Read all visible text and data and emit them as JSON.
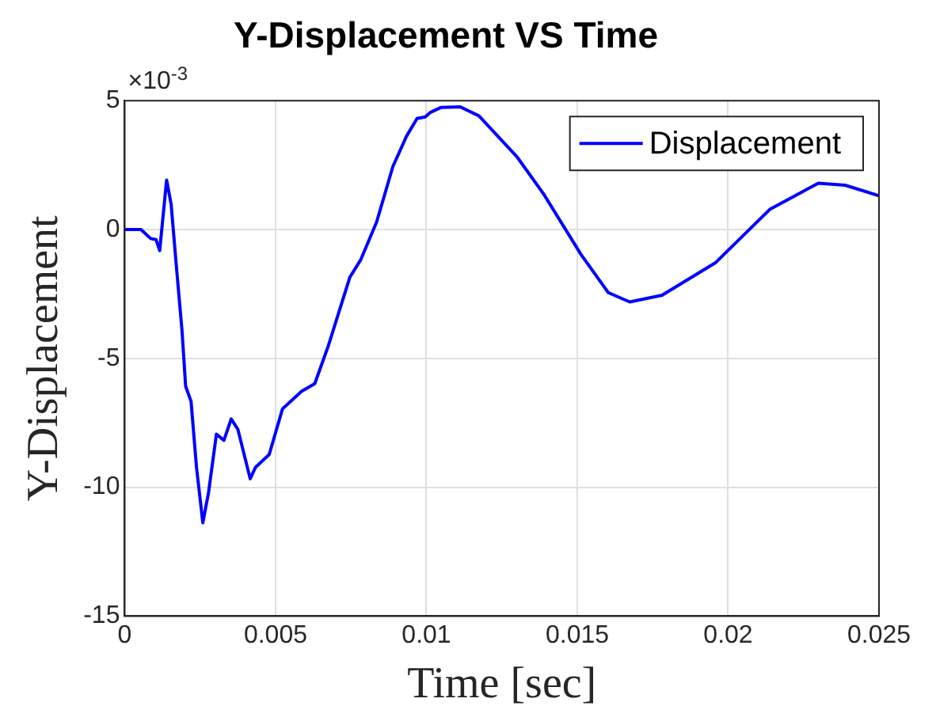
{
  "chart_data": {
    "type": "line",
    "title": "Y-Displacement VS Time",
    "xlabel": "Time [sec]",
    "ylabel": "Y-Displacement",
    "annotations": [
      "×10$^{-3}$"
    ],
    "x": [
      0,
      0.00054,
      0.00086,
      0.00104,
      0.00116,
      0.00139,
      0.00154,
      0.00171,
      0.0019,
      0.00202,
      0.0022,
      0.00238,
      0.00259,
      0.00278,
      0.00304,
      0.00329,
      0.00353,
      0.00375,
      0.00416,
      0.00434,
      0.00479,
      0.00523,
      0.00586,
      0.0063,
      0.00675,
      0.00746,
      0.00782,
      0.00835,
      0.00889,
      0.00934,
      0.00969,
      0.00996,
      0.01014,
      0.01049,
      0.01112,
      0.01174,
      0.01299,
      0.01389,
      0.01513,
      0.01603,
      0.01674,
      0.01781,
      0.01959,
      0.02138,
      0.02299,
      0.02388,
      0.025
    ],
    "series": [
      {
        "name": "Displacement",
        "color": "#0000ff",
        "values": [
          0,
          0,
          -0.35,
          -0.39,
          -0.82,
          1.92,
          0.98,
          -1.38,
          -3.92,
          -6.08,
          -6.67,
          -9.22,
          -11.38,
          -10.2,
          -7.94,
          -8.18,
          -7.35,
          -7.75,
          -9.67,
          -9.22,
          -8.73,
          -6.96,
          -6.28,
          -5.98,
          -4.51,
          -1.86,
          -1.18,
          0.29,
          2.45,
          3.62,
          4.31,
          4.37,
          4.55,
          4.74,
          4.76,
          4.41,
          2.84,
          1.37,
          -0.98,
          -2.45,
          -2.81,
          -2.55,
          -1.28,
          0.78,
          1.8,
          1.72,
          1.31
        ]
      }
    ],
    "xlim": [
      0,
      0.025
    ],
    "xticks": [
      0,
      0.005,
      0.01,
      0.015,
      0.02,
      0.025
    ],
    "ylim": [
      -15,
      5
    ],
    "yticks": [
      -15,
      -10,
      -5,
      0,
      5
    ],
    "grid": true,
    "legend": "top right",
    "marker": "none",
    "line_style": "solid"
  }
}
